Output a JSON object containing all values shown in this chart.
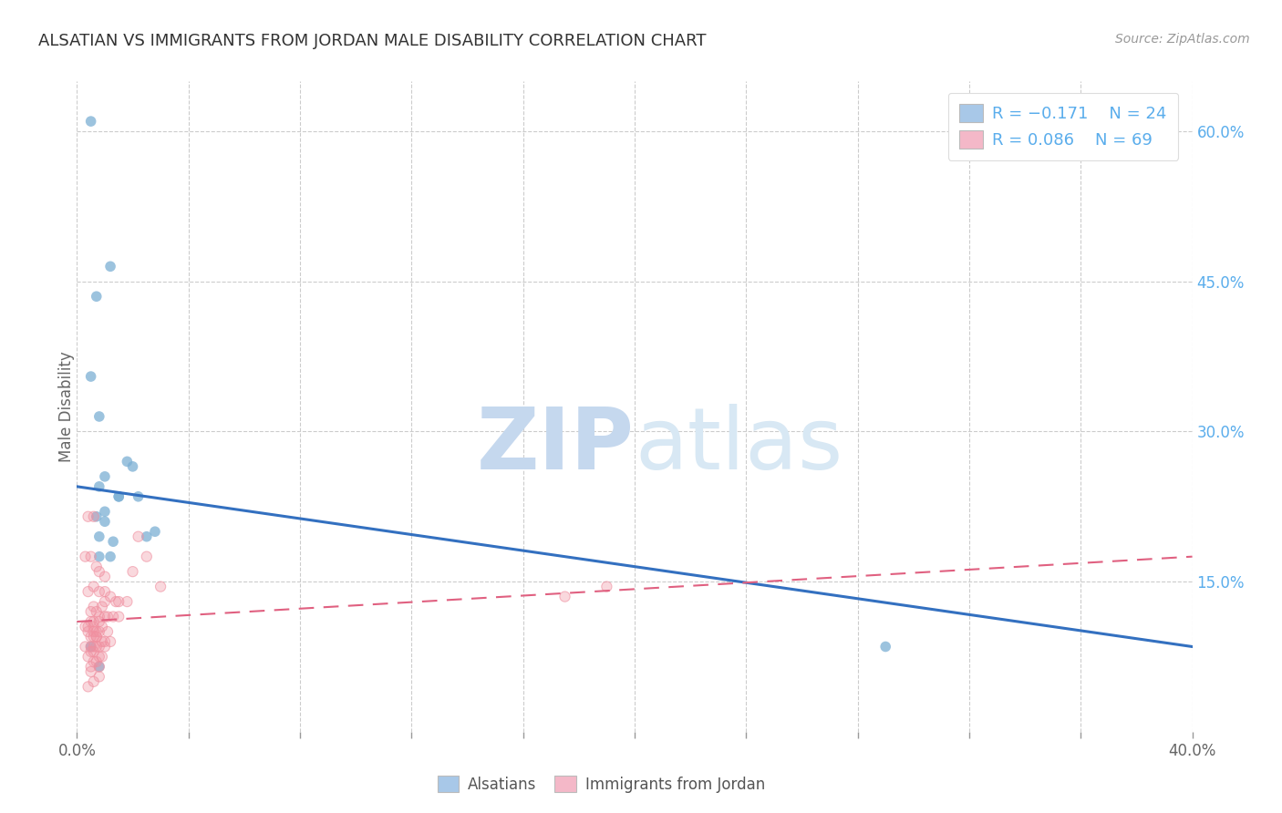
{
  "title": "ALSATIAN VS IMMIGRANTS FROM JORDAN MALE DISABILITY CORRELATION CHART",
  "source": "Source: ZipAtlas.com",
  "ylabel": "Male Disability",
  "x_min": 0.0,
  "x_max": 0.4,
  "y_min": 0.0,
  "y_max": 0.65,
  "x_ticks": [
    0.0,
    0.04,
    0.08,
    0.12,
    0.16,
    0.2,
    0.24,
    0.28,
    0.32,
    0.36,
    0.4
  ],
  "x_tick_labels_show": {
    "0.0": "0.0%",
    "0.40": "40.0%"
  },
  "y_ticks_right": [
    0.15,
    0.3,
    0.45,
    0.6
  ],
  "y_tick_labels_right": [
    "15.0%",
    "30.0%",
    "45.0%",
    "60.0%"
  ],
  "alsatian_color": "#a8c8e8",
  "alsatian_scatter_color": "#7bafd4",
  "jordan_color": "#f4b8c8",
  "jordan_scatter_color": "#f090a0",
  "blue_line_color": "#3370c0",
  "pink_line_color": "#e06080",
  "watermark_color": "#ccddf0",
  "background_color": "#ffffff",
  "alsatian_points_x": [
    0.005,
    0.012,
    0.007,
    0.005,
    0.008,
    0.018,
    0.02,
    0.01,
    0.008,
    0.015,
    0.022,
    0.015,
    0.01,
    0.007,
    0.01,
    0.028,
    0.025,
    0.008,
    0.013,
    0.008,
    0.012,
    0.29,
    0.005,
    0.008
  ],
  "alsatian_points_y": [
    0.61,
    0.465,
    0.435,
    0.355,
    0.315,
    0.27,
    0.265,
    0.255,
    0.245,
    0.235,
    0.235,
    0.235,
    0.22,
    0.215,
    0.21,
    0.2,
    0.195,
    0.195,
    0.19,
    0.175,
    0.175,
    0.085,
    0.085,
    0.065
  ],
  "jordan_points_x": [
    0.004,
    0.006,
    0.003,
    0.005,
    0.007,
    0.008,
    0.01,
    0.006,
    0.004,
    0.008,
    0.012,
    0.014,
    0.01,
    0.006,
    0.009,
    0.005,
    0.007,
    0.008,
    0.01,
    0.011,
    0.013,
    0.015,
    0.006,
    0.005,
    0.008,
    0.004,
    0.003,
    0.006,
    0.009,
    0.007,
    0.011,
    0.006,
    0.004,
    0.008,
    0.005,
    0.006,
    0.007,
    0.009,
    0.01,
    0.012,
    0.008,
    0.006,
    0.003,
    0.005,
    0.007,
    0.01,
    0.006,
    0.005,
    0.008,
    0.004,
    0.009,
    0.006,
    0.007,
    0.022,
    0.025,
    0.02,
    0.03,
    0.015,
    0.018,
    0.005,
    0.008,
    0.006,
    0.004,
    0.175,
    0.19,
    0.007,
    0.01,
    0.005,
    0.008
  ],
  "jordan_points_y": [
    0.215,
    0.215,
    0.175,
    0.175,
    0.165,
    0.16,
    0.155,
    0.145,
    0.14,
    0.14,
    0.135,
    0.13,
    0.13,
    0.125,
    0.125,
    0.12,
    0.12,
    0.115,
    0.115,
    0.115,
    0.115,
    0.115,
    0.11,
    0.11,
    0.11,
    0.105,
    0.105,
    0.105,
    0.105,
    0.1,
    0.1,
    0.1,
    0.1,
    0.1,
    0.095,
    0.095,
    0.095,
    0.09,
    0.09,
    0.09,
    0.085,
    0.085,
    0.085,
    0.085,
    0.085,
    0.085,
    0.08,
    0.08,
    0.075,
    0.075,
    0.075,
    0.07,
    0.07,
    0.195,
    0.175,
    0.16,
    0.145,
    0.13,
    0.13,
    0.065,
    0.055,
    0.05,
    0.045,
    0.135,
    0.145,
    0.095,
    0.14,
    0.06,
    0.065
  ],
  "blue_trendline_x": [
    0.0,
    0.4
  ],
  "blue_trendline_y": [
    0.245,
    0.085
  ],
  "pink_trendline_x": [
    0.0,
    0.4
  ],
  "pink_trendline_y": [
    0.11,
    0.175
  ]
}
